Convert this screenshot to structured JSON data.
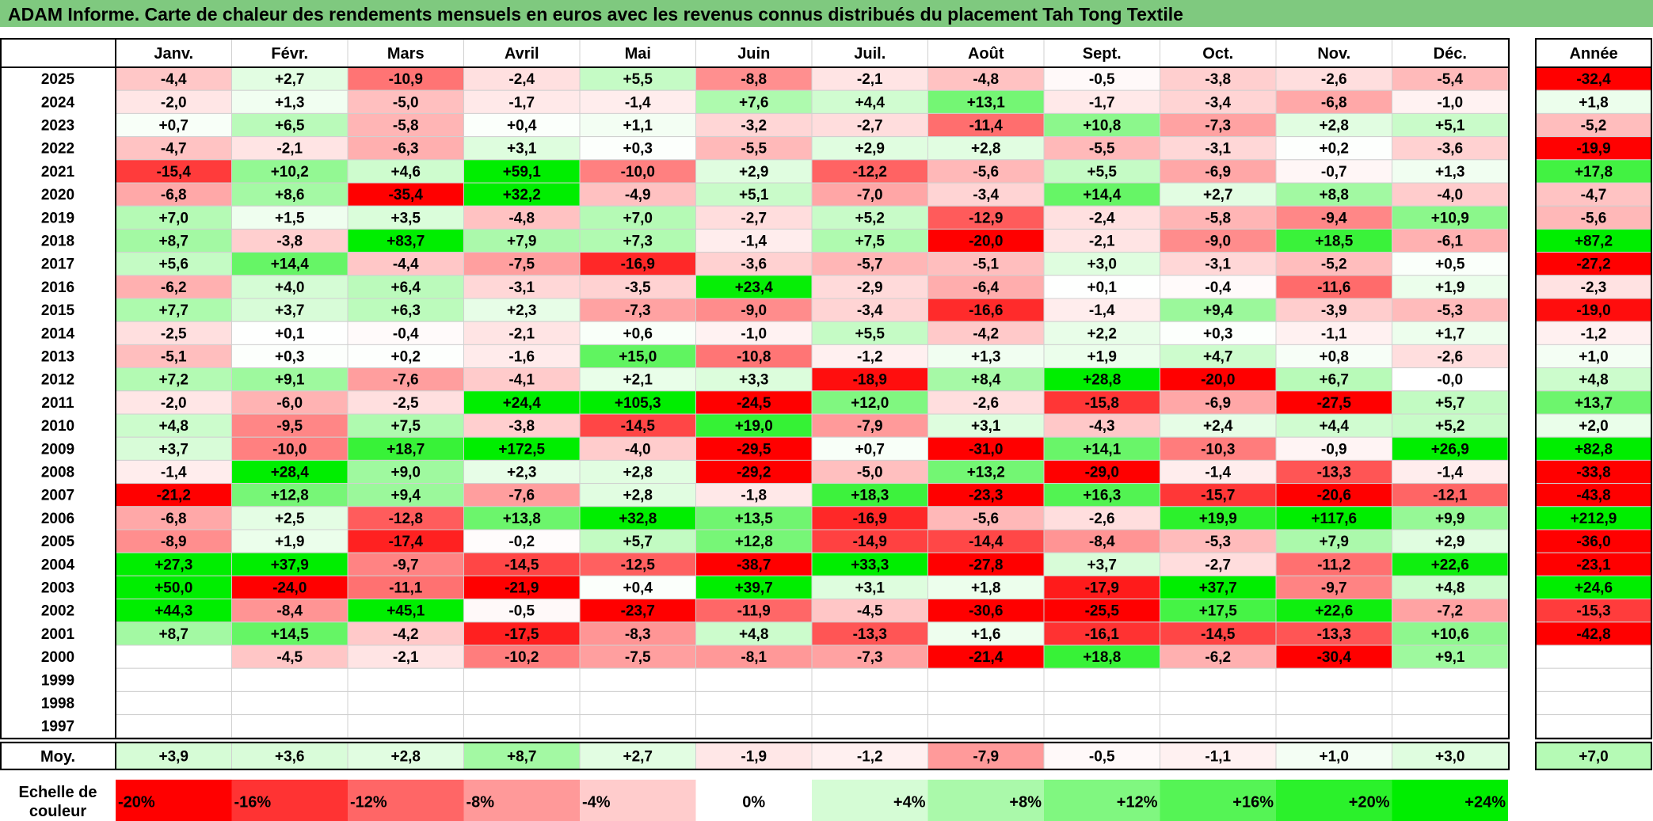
{
  "title": "ADAM Informe. Carte de chaleur des rendements mensuels en euros avec les revenus connus distribués du placement Tah Tong Textile",
  "chart_data": {
    "type": "heatmap",
    "title": "ADAM Informe. Carte de chaleur des rendements mensuels en euros avec les revenus connus distribués du placement Tah Tong Textile",
    "columns": [
      "Janv.",
      "Févr.",
      "Mars",
      "Avril",
      "Mai",
      "Juin",
      "Juil.",
      "Août",
      "Sept.",
      "Oct.",
      "Nov.",
      "Déc."
    ],
    "annual_header": "Année",
    "average_label": "Moy.",
    "rows": [
      {
        "year": "2025",
        "values": [
          "-4,4",
          "+2,7",
          "-10,9",
          "-2,4",
          "+5,5",
          "-8,8",
          "-2,1",
          "-4,8",
          "-0,5",
          "-3,8",
          "-2,6",
          "-5,4"
        ],
        "annual": "-32,4"
      },
      {
        "year": "2024",
        "values": [
          "-2,0",
          "+1,3",
          "-5,0",
          "-1,7",
          "-1,4",
          "+7,6",
          "+4,4",
          "+13,1",
          "-1,7",
          "-3,4",
          "-6,8",
          "-1,0"
        ],
        "annual": "+1,8"
      },
      {
        "year": "2023",
        "values": [
          "+0,7",
          "+6,5",
          "-5,8",
          "+0,4",
          "+1,1",
          "-3,2",
          "-2,7",
          "-11,4",
          "+10,8",
          "-7,3",
          "+2,8",
          "+5,1"
        ],
        "annual": "-5,2"
      },
      {
        "year": "2022",
        "values": [
          "-4,7",
          "-2,1",
          "-6,3",
          "+3,1",
          "+0,3",
          "-5,5",
          "+2,9",
          "+2,8",
          "-5,5",
          "-3,1",
          "+0,2",
          "-3,6"
        ],
        "annual": "-19,9"
      },
      {
        "year": "2021",
        "values": [
          "-15,4",
          "+10,2",
          "+4,6",
          "+59,1",
          "-10,0",
          "+2,9",
          "-12,2",
          "-5,6",
          "+5,5",
          "-6,9",
          "-0,7",
          "+1,3"
        ],
        "annual": "+17,8"
      },
      {
        "year": "2020",
        "values": [
          "-6,8",
          "+8,6",
          "-35,4",
          "+32,2",
          "-4,9",
          "+5,1",
          "-7,0",
          "-3,4",
          "+14,4",
          "+2,7",
          "+8,8",
          "-4,0"
        ],
        "annual": "-4,7"
      },
      {
        "year": "2019",
        "values": [
          "+7,0",
          "+1,5",
          "+3,5",
          "-4,8",
          "+7,0",
          "-2,7",
          "+5,2",
          "-12,9",
          "-2,4",
          "-5,8",
          "-9,4",
          "+10,9"
        ],
        "annual": "-5,6"
      },
      {
        "year": "2018",
        "values": [
          "+8,7",
          "-3,8",
          "+83,7",
          "+7,9",
          "+7,3",
          "-1,4",
          "+7,5",
          "-20,0",
          "-2,1",
          "-9,0",
          "+18,5",
          "-6,1"
        ],
        "annual": "+87,2"
      },
      {
        "year": "2017",
        "values": [
          "+5,6",
          "+14,4",
          "-4,4",
          "-7,5",
          "-16,9",
          "-3,6",
          "-5,7",
          "-5,1",
          "+3,0",
          "-3,1",
          "-5,2",
          "+0,5"
        ],
        "annual": "-27,2"
      },
      {
        "year": "2016",
        "values": [
          "-6,2",
          "+4,0",
          "+6,4",
          "-3,1",
          "-3,5",
          "+23,4",
          "-2,9",
          "-6,4",
          "+0,1",
          "-0,4",
          "-11,6",
          "+1,9"
        ],
        "annual": "-2,3"
      },
      {
        "year": "2015",
        "values": [
          "+7,7",
          "+3,7",
          "+6,3",
          "+2,3",
          "-7,3",
          "-9,0",
          "-3,4",
          "-16,6",
          "-1,4",
          "+9,4",
          "-3,9",
          "-5,3"
        ],
        "annual": "-19,0"
      },
      {
        "year": "2014",
        "values": [
          "-2,5",
          "+0,1",
          "-0,4",
          "-2,1",
          "+0,6",
          "-1,0",
          "+5,5",
          "-4,2",
          "+2,2",
          "+0,3",
          "-1,1",
          "+1,7"
        ],
        "annual": "-1,2"
      },
      {
        "year": "2013",
        "values": [
          "-5,1",
          "+0,3",
          "+0,2",
          "-1,6",
          "+15,0",
          "-10,8",
          "-1,2",
          "+1,3",
          "+1,9",
          "+4,7",
          "+0,8",
          "-2,6"
        ],
        "annual": "+1,0"
      },
      {
        "year": "2012",
        "values": [
          "+7,2",
          "+9,1",
          "-7,6",
          "-4,1",
          "+2,1",
          "+3,3",
          "-18,9",
          "+8,4",
          "+28,8",
          "-20,0",
          "+6,7",
          "-0,0"
        ],
        "annual": "+4,8"
      },
      {
        "year": "2011",
        "values": [
          "-2,0",
          "-6,0",
          "-2,5",
          "+24,4",
          "+105,3",
          "-24,5",
          "+12,0",
          "-2,6",
          "-15,8",
          "-6,9",
          "-27,5",
          "+5,7"
        ],
        "annual": "+13,7"
      },
      {
        "year": "2010",
        "values": [
          "+4,8",
          "-9,5",
          "+7,5",
          "-3,8",
          "-14,5",
          "+19,0",
          "-7,9",
          "+3,1",
          "-4,3",
          "+2,4",
          "+4,4",
          "+5,2"
        ],
        "annual": "+2,0"
      },
      {
        "year": "2009",
        "values": [
          "+3,7",
          "-10,0",
          "+18,7",
          "+172,5",
          "-4,0",
          "-29,5",
          "+0,7",
          "-31,0",
          "+14,1",
          "-10,3",
          "-0,9",
          "+26,9"
        ],
        "annual": "+82,8"
      },
      {
        "year": "2008",
        "values": [
          "-1,4",
          "+28,4",
          "+9,0",
          "+2,3",
          "+2,8",
          "-29,2",
          "-5,0",
          "+13,2",
          "-29,0",
          "-1,4",
          "-13,3",
          "-1,4"
        ],
        "annual": "-33,8"
      },
      {
        "year": "2007",
        "values": [
          "-21,2",
          "+12,8",
          "+9,4",
          "-7,6",
          "+2,8",
          "-1,8",
          "+18,3",
          "-23,3",
          "+16,3",
          "-15,7",
          "-20,6",
          "-12,1"
        ],
        "annual": "-43,8"
      },
      {
        "year": "2006",
        "values": [
          "-6,8",
          "+2,5",
          "-12,8",
          "+13,8",
          "+32,8",
          "+13,5",
          "-16,9",
          "-5,6",
          "-2,6",
          "+19,9",
          "+117,6",
          "+9,9"
        ],
        "annual": "+212,9"
      },
      {
        "year": "2005",
        "values": [
          "-8,9",
          "+1,9",
          "-17,4",
          "-0,2",
          "+5,7",
          "+12,8",
          "-14,9",
          "-14,4",
          "-8,4",
          "-5,3",
          "+7,9",
          "+2,9"
        ],
        "annual": "-36,0"
      },
      {
        "year": "2004",
        "values": [
          "+27,3",
          "+37,9",
          "-9,7",
          "-14,5",
          "-12,5",
          "-38,7",
          "+33,3",
          "-27,8",
          "+3,7",
          "-2,7",
          "-11,2",
          "+22,6"
        ],
        "annual": "-23,1"
      },
      {
        "year": "2003",
        "values": [
          "+50,0",
          "-24,0",
          "-11,1",
          "-21,9",
          "+0,4",
          "+39,7",
          "+3,1",
          "+1,8",
          "-17,9",
          "+37,7",
          "-9,7",
          "+4,8"
        ],
        "annual": "+24,6"
      },
      {
        "year": "2002",
        "values": [
          "+44,3",
          "-8,4",
          "+45,1",
          "-0,5",
          "-23,7",
          "-11,9",
          "-4,5",
          "-30,6",
          "-25,5",
          "+17,5",
          "+22,6",
          "-7,2"
        ],
        "annual": "-15,3"
      },
      {
        "year": "2001",
        "values": [
          "+8,7",
          "+14,5",
          "-4,2",
          "-17,5",
          "-8,3",
          "+4,8",
          "-13,3",
          "+1,6",
          "-16,1",
          "-14,5",
          "-13,3",
          "+10,6"
        ],
        "annual": "-42,8"
      },
      {
        "year": "2000",
        "values": [
          "",
          "-4,5",
          "-2,1",
          "-10,2",
          "-7,5",
          "-8,1",
          "-7,3",
          "-21,4",
          "+18,8",
          "-6,2",
          "-30,4",
          "+9,1"
        ],
        "annual": ""
      },
      {
        "year": "1999",
        "values": [
          "",
          "",
          "",
          "",
          "",
          "",
          "",
          "",
          "",
          "",
          "",
          ""
        ],
        "annual": ""
      },
      {
        "year": "1998",
        "values": [
          "",
          "",
          "",
          "",
          "",
          "",
          "",
          "",
          "",
          "",
          "",
          ""
        ],
        "annual": ""
      },
      {
        "year": "1997",
        "values": [
          "",
          "",
          "",
          "",
          "",
          "",
          "",
          "",
          "",
          "",
          "",
          ""
        ],
        "annual": ""
      }
    ],
    "averages": [
      "+3,9",
      "+3,6",
      "+2,8",
      "+8,7",
      "+2,7",
      "-1,9",
      "-1,2",
      "-7,9",
      "-0,5",
      "-1,1",
      "+1,0",
      "+3,0"
    ],
    "annual_average": "+7,0",
    "scale_label": "Echelle de couleur",
    "scale": [
      {
        "label": "-20%",
        "value": -20
      },
      {
        "label": "-16%",
        "value": -16
      },
      {
        "label": "-12%",
        "value": -12
      },
      {
        "label": "-8%",
        "value": -8
      },
      {
        "label": "-4%",
        "value": -4
      },
      {
        "label": "0%",
        "value": 0
      },
      {
        "label": "+4%",
        "value": 4
      },
      {
        "label": "+8%",
        "value": 8
      },
      {
        "label": "+12%",
        "value": 12
      },
      {
        "label": "+16%",
        "value": 16
      },
      {
        "label": "+20%",
        "value": 20
      },
      {
        "label": "+24%",
        "value": 24
      }
    ],
    "colors": {
      "negative_max": "#ff0000",
      "neutral": "#ffffff",
      "positive_max": "#00ee00",
      "title_bar": "#7fc97f",
      "grid_line": "#d0d0d0",
      "border": "#000000"
    }
  }
}
